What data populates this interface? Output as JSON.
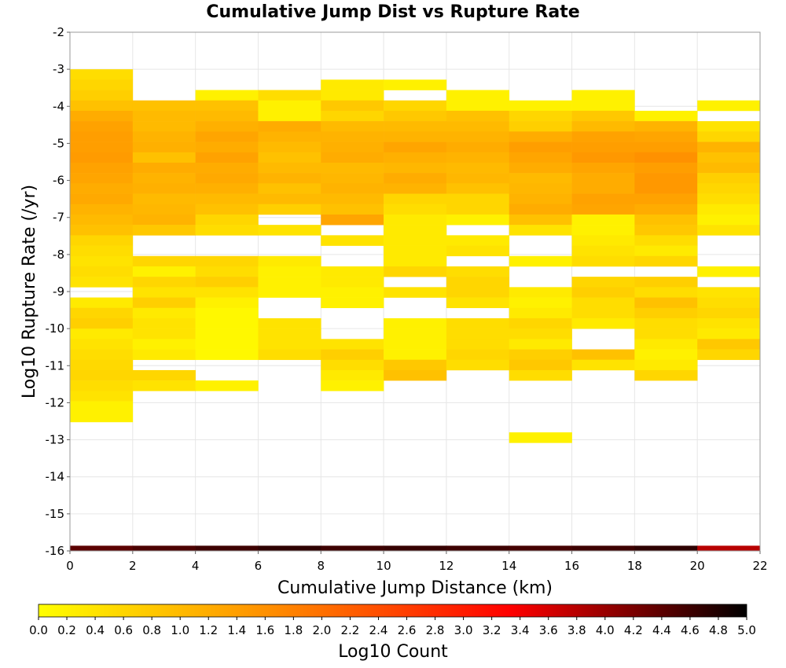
{
  "chart_data": {
    "type": "heatmap",
    "title": "Cumulative Jump Dist vs Rupture Rate",
    "xlabel": "Cumulative Jump Distance (km)",
    "ylabel": "Log10 Rupture Rate (/yr)",
    "xlim": [
      0,
      22
    ],
    "ylim": [
      -16,
      -2
    ],
    "x_ticks": [
      "0",
      "2",
      "4",
      "6",
      "8",
      "10",
      "12",
      "14",
      "16",
      "18",
      "20",
      "22"
    ],
    "y_ticks": [
      "-2",
      "-3",
      "-4",
      "-5",
      "-6",
      "-7",
      "-8",
      "-9",
      "-10",
      "-11",
      "-12",
      "-13",
      "-14",
      "-15",
      "-16"
    ],
    "x_bin_width_km": 2,
    "y_bin_height_log10": 0.28,
    "grid": true,
    "colorbar": {
      "label": "Log10 Count",
      "min": 0.0,
      "max": 5.0,
      "ticks": [
        "0.0",
        "0.2",
        "0.4",
        "0.6",
        "0.8",
        "1.0",
        "1.2",
        "1.4",
        "1.6",
        "1.8",
        "2.0",
        "2.2",
        "2.4",
        "2.6",
        "2.8",
        "3.0",
        "3.2",
        "3.4",
        "3.6",
        "3.8",
        "4.0",
        "4.2",
        "4.4",
        "4.6",
        "4.8",
        "5.0"
      ],
      "colors": [
        "#ffff00",
        "#ff8c00",
        "#ff0000",
        "#000000"
      ]
    },
    "columns": [
      {
        "x": 0,
        "y_start": -3.0,
        "y_step": -0.28,
        "values": [
          0.5,
          0.6,
          0.7,
          0.9,
          1.2,
          1.35,
          1.4,
          1.4,
          1.45,
          1.35,
          1.3,
          1.2,
          1.25,
          1.1,
          1.0,
          0.9,
          0.6,
          0.5,
          0.4,
          0.5,
          0.4,
          null,
          0.3,
          0.6,
          0.7,
          0.3,
          0.4,
          0.5,
          0.55,
          0.6,
          0.5,
          0.4,
          0.2,
          0.2
        ]
      },
      {
        "x": 2,
        "y_start": -3.84,
        "y_step": -0.28,
        "values": [
          0.9,
          1.0,
          1.0,
          1.1,
          1.15,
          0.9,
          1.2,
          1.1,
          1.15,
          1.0,
          1.05,
          1.1,
          0.8,
          null,
          null,
          0.6,
          0.2,
          0.6,
          0.4,
          0.7,
          0.3,
          0.4,
          0.4,
          0.2,
          0.3,
          null,
          0.6,
          0.4
        ]
      },
      {
        "x": 4,
        "y_start": -3.56,
        "y_step": -0.28,
        "values": [
          0.2,
          0.9,
          1.0,
          1.15,
          1.3,
          1.2,
          1.35,
          1.2,
          1.25,
          1.15,
          1.0,
          0.9,
          0.6,
          0.5,
          null,
          null,
          0.6,
          0.5,
          0.7,
          0.4,
          0.2,
          0.1,
          0.1,
          0.1,
          0.1,
          0.1,
          null,
          null,
          0.2
        ]
      },
      {
        "x": 6,
        "y_start": -3.56,
        "y_step": -0.28,
        "values": [
          0.5,
          0.2,
          0.2,
          1.2,
          1.1,
          1.0,
          0.9,
          1.0,
          1.1,
          0.9,
          1.0,
          0.7,
          null,
          0.4,
          null,
          null,
          0.3,
          0.2,
          0.2,
          0.2,
          null,
          null,
          0.4,
          0.4,
          0.4,
          0.5
        ]
      },
      {
        "x": 8,
        "y_start": -3.28,
        "y_step": -0.28,
        "values": [
          0.3,
          0.3,
          0.8,
          0.6,
          1.0,
          1.1,
          1.15,
          1.2,
          1.0,
          1.05,
          1.1,
          1.0,
          0.9,
          1.3,
          null,
          0.4,
          null,
          null,
          0.3,
          0.3,
          0.2,
          0.2,
          null,
          null,
          null,
          0.4,
          0.7,
          0.5,
          0.3,
          0.2
        ]
      },
      {
        "x": 10,
        "y_start": -3.28,
        "y_step": -0.28,
        "values": [
          0.2,
          null,
          0.6,
          0.8,
          1.0,
          1.1,
          1.3,
          1.15,
          1.05,
          1.2,
          1.1,
          0.6,
          0.5,
          0.3,
          0.3,
          0.3,
          0.3,
          0.3,
          0.6,
          null,
          0.4,
          null,
          null,
          0.2,
          0.2,
          0.2,
          0.2,
          0.8,
          0.9
        ]
      },
      {
        "x": 12,
        "y_start": -3.56,
        "y_step": -0.28,
        "values": [
          0.2,
          0.2,
          0.9,
          1.0,
          1.1,
          1.2,
          1.1,
          1.0,
          1.05,
          0.9,
          0.6,
          0.6,
          0.2,
          null,
          0.3,
          0.4,
          null,
          0.5,
          0.6,
          0.6,
          0.4,
          null,
          0.5,
          0.5,
          0.5,
          0.6,
          0.5
        ]
      },
      {
        "x": 14,
        "y_start": -3.84,
        "y_step": -0.28,
        "values": [
          0.2,
          0.6,
          0.7,
          1.2,
          1.4,
          1.3,
          1.2,
          1.0,
          1.05,
          1.1,
          1.2,
          0.9,
          0.4,
          null,
          null,
          0.2,
          null,
          null,
          0.3,
          0.2,
          0.3,
          0.6,
          0.5,
          0.3,
          0.7,
          0.8,
          0.5,
          null,
          null,
          null,
          null,
          null,
          0.2
        ]
      },
      {
        "x": 16,
        "y_start": -3.56,
        "y_step": -0.28,
        "values": [
          0.2,
          0.2,
          0.8,
          1.0,
          1.35,
          1.4,
          1.5,
          1.3,
          1.2,
          1.2,
          1.35,
          1.3,
          0.2,
          0.2,
          0.3,
          0.4,
          0.5,
          null,
          0.6,
          0.7,
          0.5,
          0.5,
          0.3,
          null,
          null,
          0.9,
          0.4
        ]
      },
      {
        "x": 18,
        "y_start": -4.12,
        "y_step": -0.28,
        "values": [
          0.2,
          1.1,
          1.3,
          1.4,
          1.6,
          1.4,
          1.5,
          1.5,
          1.35,
          1.2,
          0.9,
          0.8,
          0.5,
          0.3,
          0.6,
          null,
          0.7,
          0.5,
          0.9,
          0.7,
          0.5,
          0.5,
          0.3,
          0.2,
          0.3,
          0.6
        ]
      },
      {
        "x": 20,
        "y_start": -3.84,
        "y_step": -0.28,
        "values": [
          0.2,
          null,
          0.4,
          0.6,
          1.1,
          0.9,
          1.0,
          0.7,
          0.6,
          0.5,
          0.3,
          0.2,
          0.4,
          null,
          null,
          null,
          0.2,
          null,
          0.4,
          0.5,
          0.6,
          0.4,
          0.3,
          0.8,
          0.6
        ]
      }
    ],
    "bottom_row": {
      "y": -15.86,
      "values": [
        4.4,
        4.5,
        4.6,
        4.7,
        4.6,
        4.65,
        4.6,
        4.55,
        4.6,
        4.7,
        3.8
      ]
    }
  }
}
